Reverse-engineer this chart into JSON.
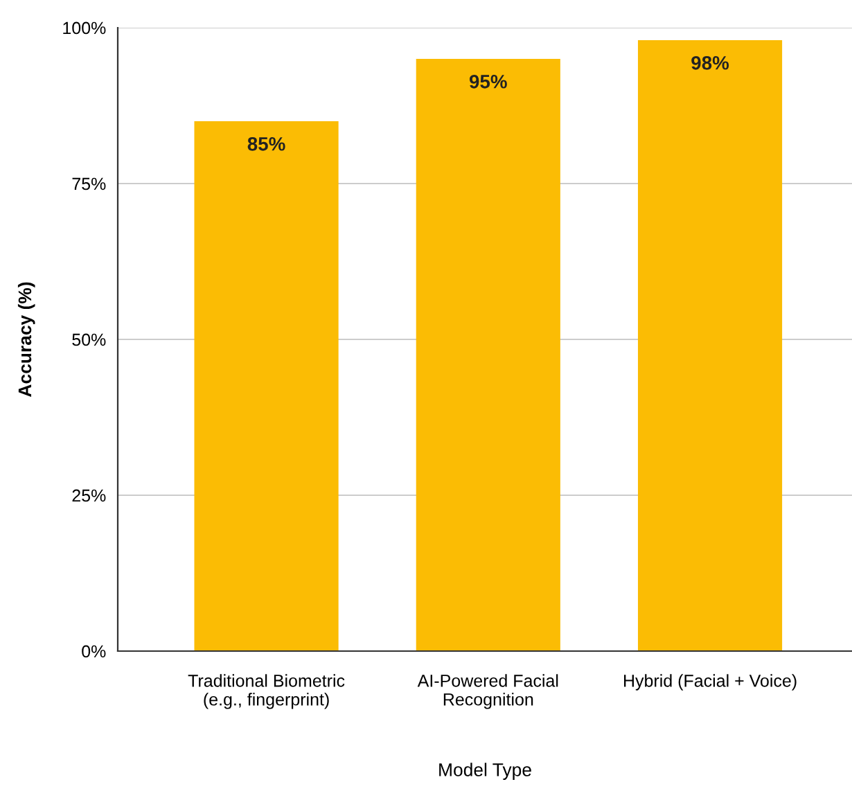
{
  "chart_data": {
    "type": "bar",
    "xlabel": "Model Type",
    "ylabel": "Accuracy (%)",
    "categories": [
      "Traditional Biometric\n(e.g., fingerprint)",
      "AI-Powered Facial\nRecognition",
      "Hybrid (Facial + Voice)"
    ],
    "values": [
      85,
      95,
      98
    ],
    "value_labels": [
      "85%",
      "95%",
      "98%"
    ],
    "color": "#fbbc04",
    "ylim": [
      0,
      100
    ],
    "yticks": [
      {
        "value": 0,
        "label": "0%"
      },
      {
        "value": 25,
        "label": "25%"
      },
      {
        "value": 50,
        "label": "50%"
      },
      {
        "value": 75,
        "label": "75%"
      },
      {
        "value": 100,
        "label": "100%"
      }
    ],
    "grid": "y",
    "legend": false
  }
}
